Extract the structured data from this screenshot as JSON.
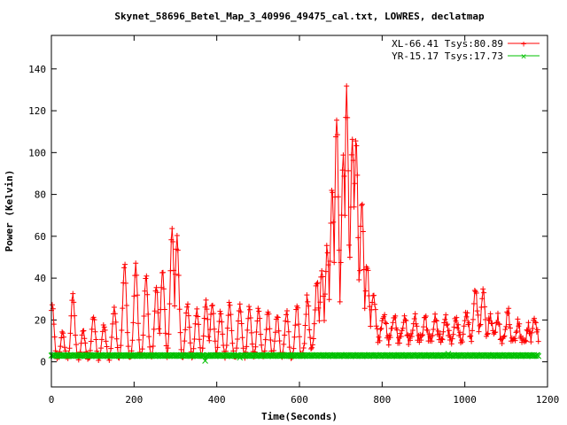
{
  "chart_data": {
    "type": "line",
    "title": "Skynet_58696_Betel_Map_3_40996_49475_cal.txt, LOWRES, declatmap",
    "xlabel": "Time(Seconds)",
    "ylabel": "Power (Kelvin)",
    "xlim": [
      0,
      1200
    ],
    "ylim": [
      -12,
      156
    ],
    "xticks": [
      0,
      200,
      400,
      600,
      800,
      1000,
      1200
    ],
    "yticks": [
      0,
      20,
      40,
      60,
      80,
      100,
      120,
      140
    ],
    "grid": false,
    "legend_position": "top-right",
    "colors": {
      "xl": "#ff0000",
      "yr": "#00c000",
      "axis": "#000000"
    },
    "series": [
      {
        "name": "XL-66.41 Tsys:80.89",
        "marker": "plus",
        "peaks": [
          [
            2,
            27
          ],
          [
            27,
            14
          ],
          [
            52,
            32
          ],
          [
            77,
            15
          ],
          [
            102,
            22
          ],
          [
            127,
            18
          ],
          [
            152,
            26
          ],
          [
            177,
            47
          ],
          [
            204,
            46
          ],
          [
            229,
            41
          ],
          [
            254,
            36
          ],
          [
            269,
            44
          ],
          [
            292,
            64
          ],
          [
            304,
            60
          ],
          [
            329,
            28
          ],
          [
            352,
            25
          ],
          [
            374,
            29
          ],
          [
            389,
            28
          ],
          [
            409,
            24
          ],
          [
            431,
            28
          ],
          [
            456,
            27
          ],
          [
            479,
            26
          ],
          [
            501,
            25
          ],
          [
            524,
            24
          ],
          [
            546,
            22
          ],
          [
            569,
            24
          ],
          [
            594,
            27
          ],
          [
            619,
            30
          ],
          [
            642,
            38
          ],
          [
            654,
            43
          ],
          [
            667,
            54
          ],
          [
            679,
            82
          ],
          [
            690,
            116
          ],
          [
            706,
            99
          ],
          [
            714,
            129
          ],
          [
            728,
            106
          ],
          [
            737,
            106
          ],
          [
            751,
            76
          ],
          [
            764,
            46
          ],
          [
            779,
            33
          ],
          [
            804,
            23
          ],
          [
            829,
            22
          ],
          [
            854,
            21
          ],
          [
            879,
            21
          ],
          [
            904,
            21
          ],
          [
            929,
            21
          ],
          [
            954,
            21
          ],
          [
            979,
            21
          ],
          [
            1004,
            24
          ],
          [
            1026,
            35
          ],
          [
            1044,
            34
          ],
          [
            1062,
            22
          ],
          [
            1079,
            21
          ],
          [
            1104,
            24
          ],
          [
            1129,
            18
          ],
          [
            1154,
            16
          ],
          [
            1169,
            21
          ]
        ],
        "baseline": [
          [
            0,
            1
          ],
          [
            600,
            1
          ],
          [
            650,
            6
          ],
          [
            700,
            9
          ],
          [
            780,
            11
          ],
          [
            850,
            10
          ],
          [
            1000,
            10
          ],
          [
            1180,
            9
          ]
        ]
      },
      {
        "name": "YR-15.17 Tsys:17.73",
        "marker": "cross",
        "constant": 3.0,
        "outliers": [
          [
            372,
            0.5
          ],
          [
            456,
            2.0
          ],
          [
            960,
            3.8
          ],
          [
            1091,
            1.8
          ]
        ]
      }
    ]
  }
}
